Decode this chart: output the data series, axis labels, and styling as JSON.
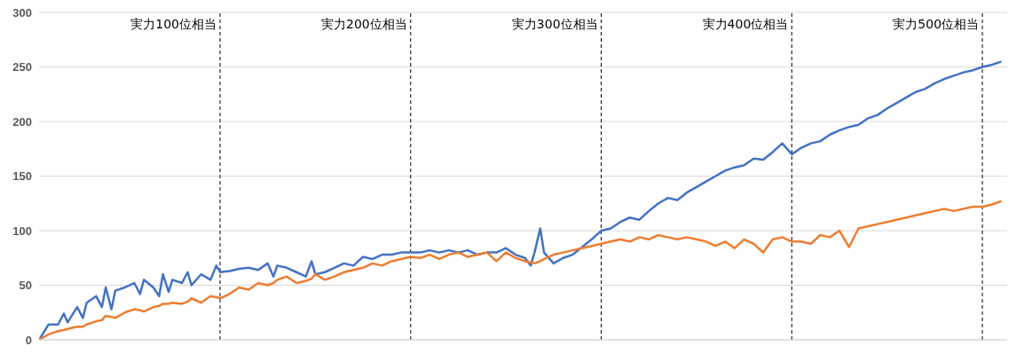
{
  "chart_data": {
    "type": "line",
    "x": [
      5,
      10,
      15,
      18,
      20,
      25,
      28,
      30,
      35,
      38,
      40,
      43,
      45,
      50,
      55,
      58,
      60,
      65,
      68,
      70,
      73,
      75,
      80,
      83,
      85,
      90,
      95,
      98,
      100,
      105,
      110,
      115,
      120,
      125,
      128,
      130,
      135,
      140,
      145,
      148,
      150,
      155,
      160,
      165,
      170,
      175,
      180,
      185,
      190,
      195,
      200,
      205,
      210,
      215,
      220,
      225,
      230,
      235,
      240,
      245,
      250,
      255,
      260,
      263,
      265,
      268,
      270,
      275,
      280,
      285,
      290,
      295,
      300,
      305,
      310,
      315,
      320,
      325,
      330,
      335,
      340,
      345,
      350,
      355,
      360,
      365,
      370,
      375,
      380,
      385,
      390,
      395,
      400,
      405,
      410,
      415,
      420,
      425,
      430,
      435,
      440,
      445,
      450,
      455,
      460,
      465,
      470,
      475,
      480,
      485,
      490,
      495,
      500,
      505,
      510
    ],
    "series": [
      {
        "color": "#4472c4",
        "values": [
          0,
          14,
          14,
          24,
          16,
          30,
          20,
          34,
          40,
          30,
          48,
          28,
          45,
          48,
          52,
          42,
          55,
          48,
          40,
          60,
          44,
          55,
          52,
          62,
          50,
          60,
          55,
          68,
          62,
          63,
          65,
          66,
          64,
          70,
          58,
          68,
          66,
          62,
          58,
          72,
          60,
          62,
          66,
          70,
          68,
          76,
          74,
          78,
          78,
          80,
          80,
          80,
          82,
          80,
          82,
          80,
          82,
          78,
          80,
          80,
          84,
          78,
          75,
          68,
          80,
          102,
          80,
          70,
          75,
          78,
          85,
          92,
          100,
          102,
          108,
          112,
          110,
          118,
          125,
          130,
          128,
          135,
          140,
          145,
          150,
          155,
          158,
          160,
          166,
          165,
          172,
          180,
          170,
          176,
          180,
          182,
          188,
          192,
          195,
          197,
          203,
          206,
          212,
          217,
          222,
          227,
          230,
          235,
          239,
          242,
          245,
          247,
          250,
          252,
          255
        ]
      },
      {
        "color": "#ed7d31",
        "values": [
          0,
          5,
          8,
          9,
          10,
          12,
          12,
          14,
          17,
          18,
          22,
          21,
          20,
          25,
          28,
          27,
          26,
          30,
          31,
          33,
          33,
          34,
          33,
          35,
          38,
          34,
          40,
          39,
          38,
          42,
          48,
          46,
          52,
          50,
          52,
          55,
          58,
          52,
          54,
          56,
          60,
          55,
          58,
          62,
          64,
          66,
          70,
          68,
          72,
          74,
          76,
          75,
          78,
          74,
          78,
          80,
          76,
          78,
          80,
          72,
          80,
          75,
          72,
          71,
          70,
          72,
          74,
          78,
          80,
          82,
          84,
          86,
          88,
          90,
          92,
          90,
          94,
          92,
          96,
          94,
          92,
          94,
          92,
          90,
          86,
          90,
          84,
          92,
          88,
          80,
          92,
          94,
          90,
          90,
          88,
          96,
          94,
          100,
          85,
          102,
          104,
          106,
          108,
          110,
          112,
          114,
          116,
          118,
          120,
          118,
          120,
          122,
          122,
          124,
          127
        ]
      }
    ],
    "xlim": [
      5,
      513
    ],
    "ylim": [
      0,
      300
    ],
    "yticks": [
      0,
      50,
      100,
      150,
      200,
      250,
      300
    ],
    "grid": "y",
    "tick_labels": "y",
    "marker": "none",
    "line_style": "solid",
    "ref_lines": [
      {
        "axis": "x",
        "value": 100,
        "label": "実力100位相当",
        "color": "#000000",
        "line_style": "dashed"
      },
      {
        "axis": "x",
        "value": 200,
        "label": "実力200位相当",
        "color": "#000000",
        "line_style": "dashed"
      },
      {
        "axis": "x",
        "value": 300,
        "label": "実力300位相当",
        "color": "#000000",
        "line_style": "dashed"
      },
      {
        "axis": "x",
        "value": 400,
        "label": "実力400位相当",
        "color": "#000000",
        "line_style": "dashed"
      },
      {
        "axis": "x",
        "value": 500,
        "label": "実力500位相当",
        "color": "#000000",
        "line_style": "dashed"
      }
    ]
  }
}
